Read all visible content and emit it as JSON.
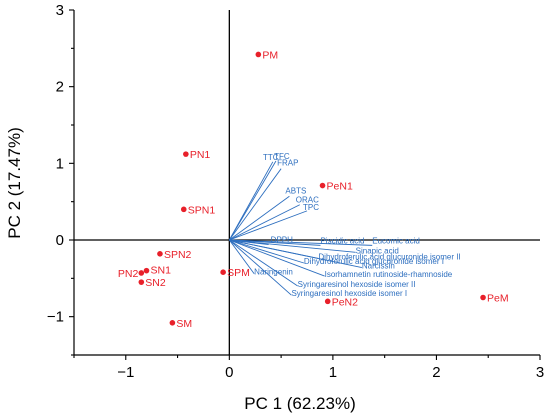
{
  "chart_data": {
    "type": "scatter",
    "title": "",
    "xlabel": "PC 1 (62.23%)",
    "ylabel": "PC 2 (17.47%)",
    "xlim": [
      -1.5,
      3
    ],
    "ylim": [
      -1.5,
      3
    ],
    "x_ticks": [
      -1,
      0,
      1,
      2,
      3
    ],
    "y_ticks": [
      -1,
      0,
      1,
      2,
      3
    ],
    "x_tick_labels": [
      "−1",
      "0",
      "1",
      "2",
      "3"
    ],
    "y_tick_labels": [
      "−1",
      "0",
      "1",
      "2",
      "3"
    ],
    "grid": false,
    "scores_color": "#e8202a",
    "loadings_color": "#2e6fbf",
    "scores": [
      {
        "label": "PM",
        "x": 0.28,
        "y": 2.42
      },
      {
        "label": "PN1",
        "x": -0.42,
        "y": 1.12
      },
      {
        "label": "SPN1",
        "x": -0.44,
        "y": 0.4
      },
      {
        "label": "PeN1",
        "x": 0.9,
        "y": 0.71
      },
      {
        "label": "SPN2",
        "x": -0.67,
        "y": -0.18
      },
      {
        "label": "PN2",
        "x": -0.85,
        "y": -0.43
      },
      {
        "label": "SN1",
        "x": -0.8,
        "y": -0.4
      },
      {
        "label": "SN2",
        "x": -0.85,
        "y": -0.55
      },
      {
        "label": "SPM",
        "x": -0.06,
        "y": -0.42
      },
      {
        "label": "SM",
        "x": -0.55,
        "y": -1.08
      },
      {
        "label": "PeN2",
        "x": 0.95,
        "y": -0.8
      },
      {
        "label": "PeM",
        "x": 2.45,
        "y": -0.75
      }
    ],
    "loadings": [
      {
        "label": "TTC",
        "x": 0.42,
        "y": 1.02
      },
      {
        "label": "TFC",
        "x": 0.45,
        "y": 1.03
      },
      {
        "label": "FRAP",
        "x": 0.5,
        "y": 0.93
      },
      {
        "label": "ABTS",
        "x": 0.58,
        "y": 0.57
      },
      {
        "label": "ORAC",
        "x": 0.68,
        "y": 0.46
      },
      {
        "label": "TPC",
        "x": 0.75,
        "y": 0.38
      },
      {
        "label": "DPPH",
        "x": 0.38,
        "y": -0.06
      },
      {
        "label": "Piscidic acid",
        "x": 0.88,
        "y": -0.07
      },
      {
        "label": "Eucomic acid",
        "x": 1.38,
        "y": -0.07
      },
      {
        "label": "Dihydroferulic acid glucuronide isomer II",
        "x": 0.86,
        "y": -0.24
      },
      {
        "label": "Sinapic acid",
        "x": 1.22,
        "y": -0.16
      },
      {
        "label": "Dihydroferulic acid glucuronide isomer I",
        "x": 0.72,
        "y": -0.3
      },
      {
        "label": "Narcissin",
        "x": 1.28,
        "y": -0.36
      },
      {
        "label": "Naringenin",
        "x": 0.24,
        "y": -0.44
      },
      {
        "label": "Isorhamnetin rutinoside-rhamnoside",
        "x": 0.92,
        "y": -0.47
      },
      {
        "label": "Syringaresinol hexoside isomer II",
        "x": 0.66,
        "y": -0.6
      },
      {
        "label": "Syringaresinol hexoside isomer I",
        "x": 0.6,
        "y": -0.72
      }
    ]
  }
}
